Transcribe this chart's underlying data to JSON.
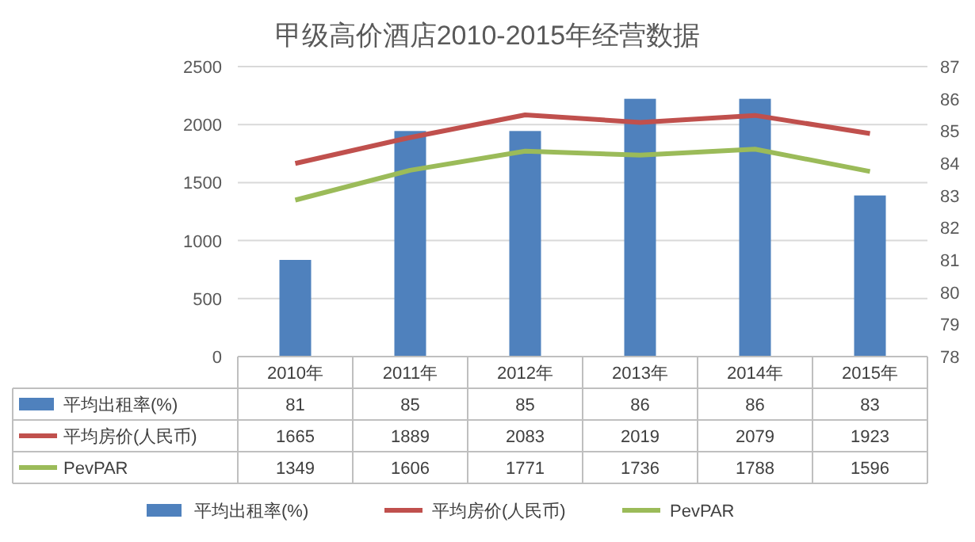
{
  "chart_data": {
    "type": "bar",
    "title": "甲级高价酒店2010-2015年经营数据",
    "categories": [
      "2010年",
      "2011年",
      "2012年",
      "2013年",
      "2014年",
      "2015年"
    ],
    "series": [
      {
        "name": "平均出租率(%)",
        "axis": "y2",
        "color": "#4f81bd",
        "values": [
          81,
          85,
          85,
          86,
          86,
          83
        ]
      },
      {
        "name": "平均房价(人民币)",
        "type": "line",
        "color": "#c0504d",
        "values": [
          1665,
          1889,
          2083,
          2019,
          2079,
          1923
        ]
      },
      {
        "name": "PevPAR",
        "type": "line",
        "color": "#9bbb59",
        "values": [
          1349,
          1606,
          1771,
          1736,
          1788,
          1596
        ]
      }
    ],
    "ylim": [
      0,
      2500
    ],
    "yticks": [
      0,
      500,
      1000,
      1500,
      2000,
      2500
    ],
    "y2lim": [
      78,
      87
    ],
    "y2ticks": [
      78,
      79,
      80,
      81,
      82,
      83,
      84,
      85,
      86,
      87
    ],
    "grid": "y",
    "legend": "bottom",
    "data_labels": true,
    "marker": "none"
  }
}
